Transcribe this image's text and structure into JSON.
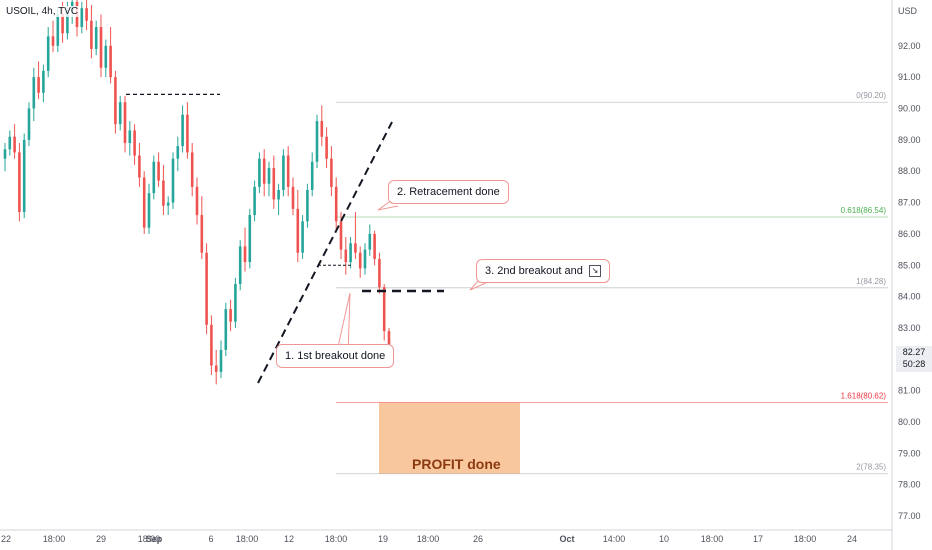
{
  "header": {
    "symbol_label": "USOIL, 4h, TVC"
  },
  "chart_data": {
    "type": "candlestick",
    "currency": "USD",
    "y_ticks": [
      77.0,
      78.0,
      79.0,
      80.0,
      81.0,
      82.0,
      83.0,
      84.0,
      85.0,
      86.0,
      87.0,
      88.0,
      89.0,
      90.0,
      91.0,
      92.0
    ],
    "x_ticks": [
      "22",
      "18:00",
      "29",
      "18:00",
      "Sep",
      "6",
      "18:00",
      "12",
      "18:00",
      "19",
      "18:00",
      "26",
      "Oct",
      "14:00",
      "10",
      "18:00",
      "17",
      "18:00",
      "24"
    ],
    "current_price": "82.27",
    "countdown": "50:28",
    "fibonacci_levels": [
      {
        "label": "0(90.20)",
        "price": 90.2,
        "color": "#9598a1"
      },
      {
        "label": "0.618(86.54)",
        "price": 86.54,
        "color": "#4caf50"
      },
      {
        "label": "1(84.28)",
        "price": 84.28,
        "color": "#9598a1"
      },
      {
        "label": "1.618(80.62)",
        "price": 80.62,
        "color": "#f23645"
      },
      {
        "label": "2(78.35)",
        "price": 78.35,
        "color": "#9598a1"
      }
    ],
    "profit_zone": {
      "price_top": 80.62,
      "price_bottom": 78.35,
      "color": "#f7b47e"
    },
    "annotations": [
      "1. 1st breakout done",
      "2. Retracement done",
      "3. 2nd breakout and",
      "PROFIT done"
    ],
    "colors": {
      "up": "#26a69a",
      "down": "#ef5350"
    },
    "candles": [
      [
        88.4,
        88.9,
        88.0,
        88.7
      ],
      [
        88.7,
        89.3,
        88.5,
        89.1
      ],
      [
        89.1,
        89.5,
        88.4,
        88.6
      ],
      [
        88.6,
        88.9,
        86.4,
        86.7
      ],
      [
        86.7,
        89.2,
        86.5,
        89.0
      ],
      [
        89.0,
        90.2,
        88.8,
        90.0
      ],
      [
        90.0,
        91.3,
        89.6,
        91.0
      ],
      [
        91.0,
        91.5,
        90.3,
        90.5
      ],
      [
        90.5,
        91.4,
        90.2,
        91.2
      ],
      [
        91.2,
        92.6,
        91.0,
        92.3
      ],
      [
        92.3,
        92.8,
        91.8,
        92.0
      ],
      [
        92.0,
        93.2,
        91.8,
        93.0
      ],
      [
        93.0,
        93.4,
        92.1,
        92.4
      ],
      [
        92.4,
        93.4,
        92.2,
        93.1
      ],
      [
        93.1,
        93.8,
        92.7,
        93.4
      ],
      [
        93.4,
        93.6,
        92.3,
        92.6
      ],
      [
        92.6,
        93.4,
        92.4,
        93.2
      ],
      [
        93.2,
        93.6,
        92.5,
        92.8
      ],
      [
        92.8,
        93.3,
        91.6,
        91.9
      ],
      [
        91.9,
        92.8,
        91.7,
        92.6
      ],
      [
        92.6,
        93.0,
        91.0,
        91.3
      ],
      [
        91.3,
        92.2,
        91.0,
        92.0
      ],
      [
        92.0,
        92.6,
        90.8,
        91.0
      ],
      [
        91.0,
        91.2,
        89.2,
        89.5
      ],
      [
        89.5,
        90.4,
        89.3,
        90.2
      ],
      [
        90.2,
        90.4,
        88.6,
        88.9
      ],
      [
        88.9,
        89.6,
        88.5,
        89.3
      ],
      [
        89.3,
        89.5,
        88.2,
        88.5
      ],
      [
        88.5,
        88.9,
        87.5,
        87.8
      ],
      [
        87.8,
        88.0,
        86.0,
        86.2
      ],
      [
        86.2,
        87.6,
        86.0,
        87.3
      ],
      [
        87.3,
        88.5,
        87.1,
        88.3
      ],
      [
        88.3,
        88.6,
        87.5,
        87.7
      ],
      [
        87.7,
        88.2,
        86.6,
        86.9
      ],
      [
        86.9,
        87.2,
        86.6,
        87.0
      ],
      [
        87.0,
        88.6,
        86.8,
        88.4
      ],
      [
        88.4,
        89.1,
        88.0,
        88.8
      ],
      [
        88.8,
        90.1,
        88.6,
        89.8
      ],
      [
        89.8,
        90.2,
        88.4,
        88.6
      ],
      [
        88.6,
        88.9,
        87.2,
        87.5
      ],
      [
        87.5,
        87.8,
        86.3,
        86.6
      ],
      [
        86.6,
        87.2,
        85.2,
        85.4
      ],
      [
        85.4,
        85.7,
        82.8,
        83.1
      ],
      [
        83.1,
        83.4,
        81.5,
        81.8
      ],
      [
        81.8,
        82.3,
        81.2,
        81.6
      ],
      [
        81.6,
        82.6,
        81.4,
        82.3
      ],
      [
        82.3,
        83.8,
        82.1,
        83.6
      ],
      [
        83.6,
        83.9,
        82.9,
        83.2
      ],
      [
        83.2,
        84.6,
        83.0,
        84.4
      ],
      [
        84.4,
        85.8,
        84.2,
        85.6
      ],
      [
        85.6,
        86.2,
        84.8,
        85.1
      ],
      [
        85.1,
        86.8,
        84.9,
        86.6
      ],
      [
        86.6,
        87.7,
        86.4,
        87.5
      ],
      [
        87.5,
        88.6,
        87.3,
        88.4
      ],
      [
        88.4,
        88.7,
        87.2,
        87.6
      ],
      [
        87.6,
        88.3,
        87.2,
        88.1
      ],
      [
        88.1,
        88.5,
        86.8,
        87.1
      ],
      [
        87.1,
        87.6,
        86.6,
        87.4
      ],
      [
        87.4,
        88.7,
        87.2,
        88.5
      ],
      [
        88.5,
        88.8,
        87.2,
        87.5
      ],
      [
        87.5,
        87.8,
        86.6,
        86.8
      ],
      [
        86.8,
        87.4,
        85.1,
        85.4
      ],
      [
        85.4,
        86.6,
        85.2,
        86.4
      ],
      [
        86.4,
        87.6,
        86.2,
        87.4
      ],
      [
        87.4,
        88.6,
        87.2,
        88.3
      ],
      [
        88.3,
        89.8,
        88.1,
        89.6
      ],
      [
        89.6,
        90.1,
        88.8,
        89.1
      ],
      [
        89.1,
        89.4,
        88.1,
        88.4
      ],
      [
        88.4,
        88.8,
        87.2,
        87.5
      ],
      [
        87.5,
        87.8,
        86.1,
        86.4
      ],
      [
        86.4,
        86.7,
        85.2,
        85.5
      ],
      [
        85.5,
        85.9,
        84.7,
        85.1
      ],
      [
        85.1,
        85.9,
        84.9,
        85.7
      ],
      [
        85.7,
        86.7,
        85.2,
        85.4
      ],
      [
        85.4,
        85.6,
        84.6,
        84.9
      ],
      [
        84.9,
        85.7,
        84.7,
        85.5
      ],
      [
        85.5,
        86.3,
        85.3,
        86.0
      ],
      [
        86.0,
        86.1,
        85.0,
        85.2
      ],
      [
        85.2,
        85.4,
        84.1,
        84.3
      ],
      [
        84.3,
        84.4,
        82.6,
        82.9
      ],
      [
        82.9,
        83.0,
        82.2,
        82.27
      ]
    ]
  }
}
